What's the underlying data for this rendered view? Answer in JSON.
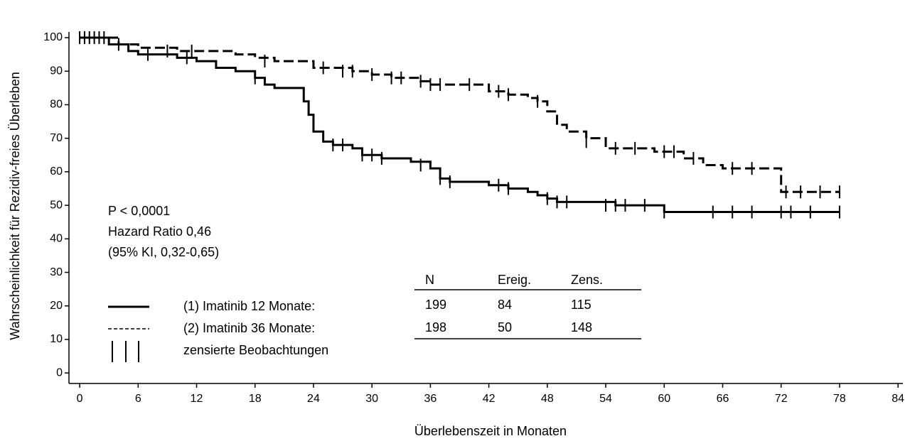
{
  "chart_data": {
    "type": "km-step",
    "x_label": "Überlebenszeit in Monaten",
    "y_label": "Wahrscheinlichkeit für Rezidiv-freies Überleben",
    "xlim": [
      -1.1,
      84.5
    ],
    "ylim": [
      -2.5,
      101.7
    ],
    "xticks": [
      0,
      6,
      12,
      18,
      24,
      30,
      36,
      42,
      48,
      54,
      60,
      66,
      72,
      78,
      84
    ],
    "yticks": [
      0,
      10,
      20,
      30,
      40,
      50,
      60,
      70,
      80,
      90,
      100
    ],
    "annotations": [
      "P < 0,0001",
      "Hazard Ratio 0,46",
      "(95% KI, 0,32-0,65)"
    ],
    "censor_label": "zensierte Beobachtungen",
    "table": {
      "header": [
        "N",
        "Ereig.",
        "Zens."
      ],
      "rows": [
        [
          "199",
          "84",
          "115"
        ],
        [
          "198",
          "50",
          "148"
        ]
      ]
    },
    "series": [
      {
        "name": "(1) Imatinib 12 Monate:",
        "color": "#000000",
        "dash": "solid",
        "x": [
          0,
          3,
          5,
          6,
          10,
          12,
          14,
          16,
          18,
          19,
          20,
          22,
          23,
          23.5,
          24,
          25,
          26,
          28,
          29,
          31,
          34,
          36,
          37,
          38,
          40,
          42,
          44,
          46,
          47,
          48,
          49,
          53,
          55,
          60,
          78
        ],
        "values": [
          100,
          98,
          96,
          95,
          94,
          93,
          91,
          90,
          88,
          86,
          85,
          85,
          81,
          77,
          72,
          69,
          68,
          67,
          65,
          64,
          63,
          61,
          58,
          57,
          57,
          56,
          55,
          54,
          53,
          52,
          51,
          51,
          50,
          48,
          48
        ],
        "censored_x": [
          0.5,
          1,
          1.5,
          2,
          7,
          11,
          18,
          26,
          27,
          29,
          30,
          31,
          35,
          37,
          38,
          43,
          44,
          48,
          49,
          50,
          54,
          55,
          56,
          58,
          60,
          65,
          67,
          69,
          72,
          73,
          75,
          78
        ],
        "censored_y": [
          100,
          100,
          100,
          100,
          95,
          94,
          88,
          68,
          68,
          65,
          65,
          64,
          62,
          58,
          57,
          56,
          55,
          52,
          51,
          51,
          50,
          50,
          50,
          50,
          48,
          48,
          48,
          48,
          48,
          48,
          48,
          48
        ]
      },
      {
        "name": "(2) Imatinib 36 Monate:",
        "color": "#000000",
        "dash": "dashed",
        "x": [
          0,
          4,
          6,
          10,
          16,
          18,
          20,
          24,
          28,
          30,
          32,
          35,
          36,
          42,
          44,
          46,
          47,
          48,
          49,
          50,
          52,
          54,
          59,
          62,
          64,
          66,
          71.5,
          72,
          78
        ],
        "values": [
          100,
          98,
          97,
          96,
          95,
          94,
          93,
          91,
          90,
          89,
          88,
          87,
          86,
          84,
          83,
          82,
          81,
          78,
          74,
          72,
          70,
          67,
          66,
          64,
          62,
          61,
          61,
          54,
          54
        ],
        "censored_x": [
          0,
          2.5,
          4,
          9,
          11.5,
          19,
          25,
          27,
          28,
          30,
          32,
          33,
          35,
          36,
          37,
          40,
          43,
          44,
          47,
          52,
          55,
          57,
          60,
          61,
          63,
          67,
          69,
          72.5,
          74,
          76,
          78
        ],
        "censored_y": [
          100,
          100,
          98,
          96,
          96,
          93,
          91,
          90,
          90,
          89,
          88,
          88,
          87,
          86,
          86,
          86,
          84,
          83,
          81,
          69,
          67,
          67,
          66,
          66,
          64,
          61,
          61,
          54,
          54,
          54,
          54
        ]
      }
    ]
  }
}
